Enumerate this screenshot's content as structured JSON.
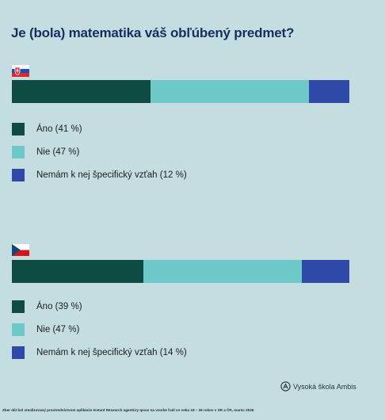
{
  "title": "Je (bola) matematika váš obľúbený predmet?",
  "colors": {
    "ano": "#0d4b43",
    "nie": "#6cc9c7",
    "nemam": "#2f49a8"
  },
  "chart_data": [
    {
      "type": "bar",
      "country": "SK",
      "flag_icon": "slovakia-flag-icon",
      "orientation": "horizontal-stacked",
      "series": [
        {
          "name": "Áno",
          "value": 41
        },
        {
          "name": "Nie",
          "value": 47
        },
        {
          "name": "Nemám k nej špecifický vzťah",
          "value": 12
        }
      ],
      "legend": [
        "Áno (41 %)",
        "Nie (47 %)",
        "Nemám k nej špecifický vzťah (12 %)"
      ]
    },
    {
      "type": "bar",
      "country": "CZ",
      "flag_icon": "czech-flag-icon",
      "orientation": "horizontal-stacked",
      "series": [
        {
          "name": "Áno",
          "value": 39
        },
        {
          "name": "Nie",
          "value": 47
        },
        {
          "name": "Nemám k nej špecifický vzťah",
          "value": 14
        }
      ],
      "legend": [
        "Áno (39 %)",
        "Nie (47 %)",
        "Nemám k nej špecifický vzťah (14 %)"
      ]
    }
  ],
  "logo": {
    "text": "Vysoká škola Ambis",
    "icon": "ambis-logo-icon"
  },
  "footnote": "Zber dát bol zrealizovaný prostredníctvom aplikácie Instant Research agentúry Ipsos na vzorke ľudí vo veku 18 – 26 rokov v SR a ČR, marec 2026"
}
